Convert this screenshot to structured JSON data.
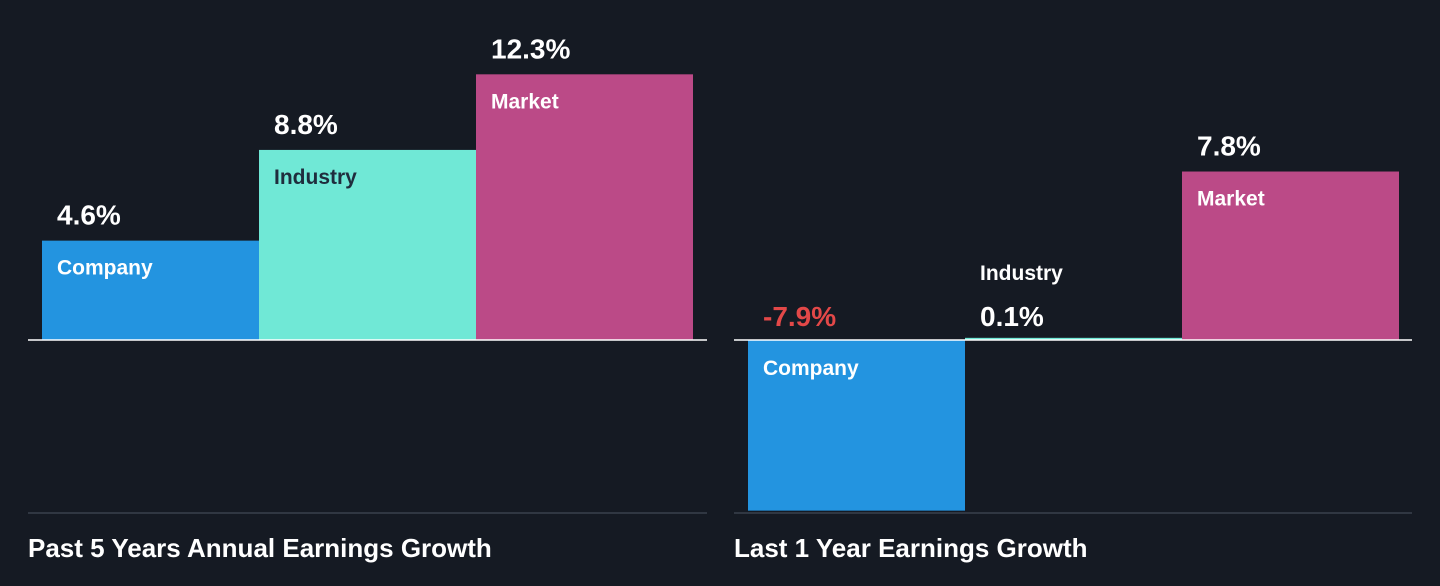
{
  "colors": {
    "background": "#151a23",
    "company": "#2394e0",
    "industry": "#70e8d6",
    "market": "#bb4a87",
    "text": "#ffffff",
    "label_dark": "#1f2d3d",
    "negative": "#e34848",
    "axis": "#ffffff",
    "baseline": "#3a414d"
  },
  "chart_data": [
    {
      "type": "bar",
      "title": "Past 5 Years Annual Earnings Growth",
      "categories": [
        "Company",
        "Industry",
        "Market"
      ],
      "values": [
        4.6,
        8.8,
        12.3
      ],
      "value_labels": [
        "4.6%",
        "8.8%",
        "12.3%"
      ],
      "unit": "%",
      "ylim": [
        -8.0,
        12.3
      ],
      "grid": false
    },
    {
      "type": "bar",
      "title": "Last 1 Year Earnings Growth",
      "categories": [
        "Company",
        "Industry",
        "Market"
      ],
      "values": [
        -7.9,
        0.1,
        7.8
      ],
      "value_labels": [
        "-7.9%",
        "0.1%",
        "7.8%"
      ],
      "unit": "%",
      "ylim": [
        -8.0,
        12.3
      ],
      "grid": false
    }
  ]
}
